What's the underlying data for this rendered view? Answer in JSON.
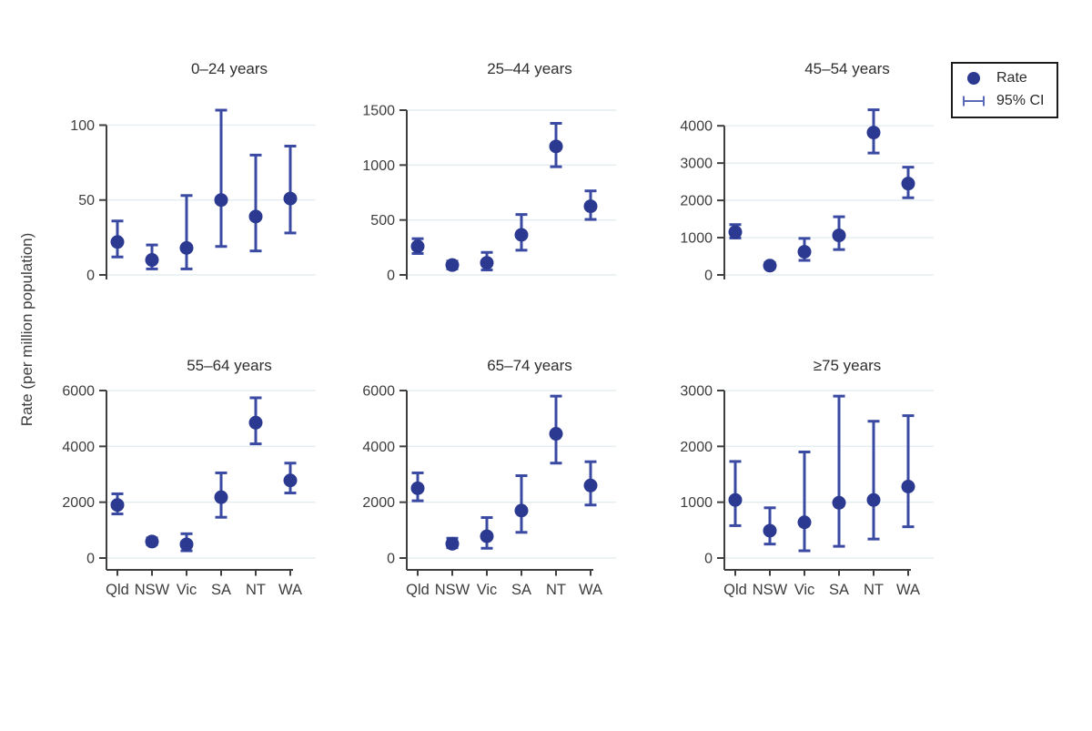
{
  "figure": {
    "ylabel": "Rate (per million population)"
  },
  "legend": {
    "rate_label": "Rate",
    "ci_label": "95% CI"
  },
  "colors": {
    "point": "#2b3a90",
    "error_bar": "#3a4aa3",
    "legend_ci": "#5a68b8",
    "gridline": "#e4eef1",
    "axis": "#3f3f3f",
    "text": "#3d3d3d"
  },
  "chart_data": [
    {
      "type": "scatter",
      "title": "0–24 years",
      "categories": [
        "Qld",
        "NSW",
        "Vic",
        "SA",
        "NT",
        "WA"
      ],
      "yticks": [
        0,
        50,
        100
      ],
      "ylim": [
        0,
        110
      ],
      "series": [
        {
          "name": "Rate",
          "values": [
            22,
            10,
            18,
            50,
            39,
            51
          ]
        }
      ],
      "ci_low": [
        12,
        4,
        4,
        19,
        16,
        28
      ],
      "ci_high": [
        36,
        20,
        53,
        110,
        80,
        86
      ],
      "grid": true,
      "x_labels_shown": false
    },
    {
      "type": "scatter",
      "title": "25–44 years",
      "categories": [
        "Qld",
        "NSW",
        "Vic",
        "SA",
        "NT",
        "WA"
      ],
      "yticks": [
        0,
        500,
        1000,
        1500
      ],
      "ylim": [
        0,
        1500
      ],
      "series": [
        {
          "name": "Rate",
          "values": [
            260,
            90,
            110,
            365,
            1170,
            625
          ]
        }
      ],
      "ci_low": [
        195,
        55,
        45,
        225,
        985,
        505
      ],
      "ci_high": [
        330,
        125,
        205,
        550,
        1380,
        765
      ],
      "grid": true,
      "x_labels_shown": false
    },
    {
      "type": "scatter",
      "title": "45–54 years",
      "categories": [
        "Qld",
        "NSW",
        "Vic",
        "SA",
        "NT",
        "WA"
      ],
      "yticks": [
        0,
        1000,
        2000,
        3000,
        4000
      ],
      "ylim": [
        0,
        4420
      ],
      "series": [
        {
          "name": "Rate",
          "values": [
            1150,
            250,
            620,
            1060,
            3820,
            2450
          ]
        }
      ],
      "ci_low": [
        990,
        180,
        390,
        680,
        3270,
        2070
      ],
      "ci_high": [
        1350,
        330,
        980,
        1560,
        4430,
        2890
      ],
      "grid": true,
      "x_labels_shown": false
    },
    {
      "type": "scatter",
      "title": "55–64 years",
      "categories": [
        "Qld",
        "NSW",
        "Vic",
        "SA",
        "NT",
        "WA"
      ],
      "yticks": [
        0,
        2000,
        4000,
        6000
      ],
      "ylim": [
        0,
        6000
      ],
      "series": [
        {
          "name": "Rate",
          "values": [
            1900,
            590,
            490,
            2180,
            4850,
            2780
          ]
        }
      ],
      "ci_low": [
        1580,
        480,
        260,
        1460,
        4090,
        2330
      ],
      "ci_high": [
        2300,
        720,
        870,
        3050,
        5740,
        3400
      ],
      "grid": true,
      "x_labels_shown": true
    },
    {
      "type": "scatter",
      "title": "65–74 years",
      "categories": [
        "Qld",
        "NSW",
        "Vic",
        "SA",
        "NT",
        "WA"
      ],
      "yticks": [
        0,
        2000,
        4000,
        6000
      ],
      "ylim": [
        0,
        6000
      ],
      "series": [
        {
          "name": "Rate",
          "values": [
            2500,
            510,
            780,
            1700,
            4450,
            2600
          ]
        }
      ],
      "ci_low": [
        2050,
        370,
        350,
        920,
        3400,
        1900
      ],
      "ci_high": [
        3050,
        710,
        1450,
        2950,
        5800,
        3450
      ],
      "grid": true,
      "x_labels_shown": true
    },
    {
      "type": "scatter",
      "title": "≥75 years",
      "categories": [
        "Qld",
        "NSW",
        "Vic",
        "SA",
        "NT",
        "WA"
      ],
      "yticks": [
        0,
        1000,
        2000,
        3000
      ],
      "ylim": [
        0,
        3000
      ],
      "series": [
        {
          "name": "Rate",
          "values": [
            1040,
            490,
            640,
            990,
            1040,
            1280
          ]
        }
      ],
      "ci_low": [
        580,
        250,
        130,
        210,
        340,
        560
      ],
      "ci_high": [
        1730,
        900,
        1900,
        2900,
        2450,
        2550
      ],
      "grid": true,
      "x_labels_shown": true
    }
  ]
}
